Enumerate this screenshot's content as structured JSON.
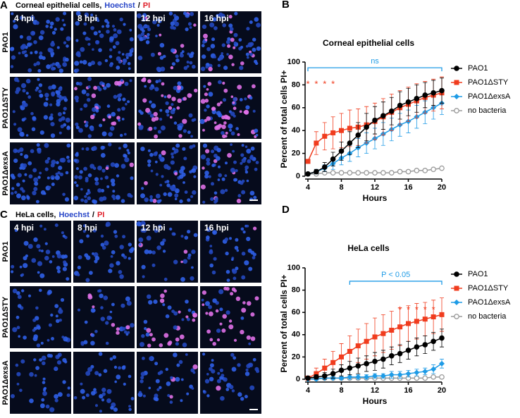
{
  "panels": [
    {
      "letter": "A",
      "header": {
        "text": "Corneal epithelial cells,",
        "stain1": "Hoechst",
        "sep": "/",
        "stain2": "PI"
      },
      "columns": [
        "4 hpi",
        "8 hpi",
        "12 hpi",
        "16 hpi"
      ],
      "rows": [
        "PAO1",
        "PAO1ΔSTY",
        "PAO1ΔexsA"
      ]
    },
    {
      "letter": "C",
      "header": {
        "text": "HeLa cells,",
        "stain1": "Hoechst",
        "sep": "/",
        "stain2": "PI"
      },
      "columns": [
        "4 hpi",
        "8 hpi",
        "12 hpi",
        "16 hpi"
      ],
      "rows": [
        "PAO1",
        "PAO1ΔSTY",
        "PAO1ΔexsA"
      ]
    }
  ],
  "chart_data": [
    {
      "type": "line",
      "letter": "B",
      "title": "Corneal epithelial cells",
      "x_label": "Hours",
      "y_label": "Percent of total cells PI+",
      "x": [
        4,
        5,
        6,
        7,
        8,
        9,
        10,
        11,
        12,
        13,
        14,
        15,
        16,
        17,
        18,
        19,
        20
      ],
      "xlim": [
        4,
        20
      ],
      "xticks": [
        4,
        8,
        12,
        16,
        20
      ],
      "ylim": [
        0,
        100
      ],
      "yticks": [
        0,
        20,
        40,
        60,
        80,
        100
      ],
      "series": [
        {
          "name": "PAO1",
          "color": "#000000",
          "marker": "circle",
          "values": [
            2,
            4,
            8,
            15,
            22,
            29,
            36,
            43,
            49,
            53,
            57,
            62,
            65,
            68,
            71,
            73,
            75
          ],
          "errors": [
            1,
            2,
            4,
            6,
            8,
            10,
            11,
            12,
            12,
            12,
            12,
            12,
            12,
            12,
            11,
            11,
            11
          ]
        },
        {
          "name": "PAO1ΔSTY",
          "color": "#f03c1e",
          "marker": "square",
          "values": [
            13,
            29,
            35,
            38,
            40,
            42,
            43,
            45,
            48,
            52,
            56,
            60,
            63,
            66,
            69,
            71,
            73
          ],
          "errors": [
            0,
            10,
            12,
            14,
            15,
            16,
            16,
            16,
            16,
            16,
            16,
            15,
            15,
            15,
            14,
            14,
            14
          ]
        },
        {
          "name": "PAO1ΔexsA",
          "color": "#1e9be6",
          "marker": "diamond",
          "values": [
            2,
            4,
            7,
            11,
            16,
            20,
            25,
            29,
            33,
            37,
            41,
            45,
            48,
            52,
            56,
            60,
            64
          ],
          "errors": [
            1,
            2,
            3,
            5,
            6,
            7,
            8,
            9,
            9,
            10,
            10,
            10,
            10,
            10,
            10,
            10,
            10
          ]
        },
        {
          "name": "no bacteria",
          "color": "#9a9a9a",
          "marker": "open-circle",
          "values": [
            2,
            2,
            3,
            3,
            3,
            3,
            3,
            3,
            3,
            3,
            3,
            4,
            4,
            5,
            5,
            6,
            7
          ]
        }
      ],
      "bracket": {
        "text": "ns",
        "x": [
          4,
          20
        ],
        "y": 95,
        "color": "#1e9be6"
      },
      "stars": {
        "text": "*",
        "x": [
          4,
          5,
          6,
          7
        ],
        "y": 82,
        "color": "#f03c1e"
      }
    },
    {
      "type": "line",
      "letter": "D",
      "title": "HeLa cells",
      "x_label": "Hours",
      "y_label": "Percent of total cells PI+",
      "x": [
        4,
        5,
        6,
        7,
        8,
        9,
        10,
        11,
        12,
        13,
        14,
        15,
        16,
        17,
        18,
        19,
        20
      ],
      "xlim": [
        4,
        20
      ],
      "xticks": [
        4,
        8,
        12,
        16,
        20
      ],
      "ylim": [
        0,
        100
      ],
      "yticks": [
        0,
        20,
        40,
        60,
        80,
        100
      ],
      "series": [
        {
          "name": "PAO1",
          "color": "#000000",
          "marker": "circle",
          "values": [
            1,
            2,
            3,
            5,
            8,
            10,
            12,
            14,
            16,
            18,
            21,
            23,
            26,
            29,
            31,
            34,
            37
          ],
          "errors": [
            0,
            2,
            3,
            4,
            5,
            6,
            7,
            7,
            8,
            8,
            8,
            8,
            8,
            8,
            8,
            8,
            8
          ]
        },
        {
          "name": "PAO1ΔSTY",
          "color": "#f03c1e",
          "marker": "square",
          "values": [
            1,
            5,
            10,
            15,
            20,
            25,
            30,
            34,
            38,
            41,
            44,
            47,
            50,
            52,
            54,
            56,
            58
          ],
          "errors": [
            0,
            5,
            8,
            10,
            12,
            14,
            15,
            16,
            17,
            17,
            17,
            17,
            16,
            16,
            15,
            15,
            15
          ]
        },
        {
          "name": "PAO1ΔexsA",
          "color": "#1e9be6",
          "marker": "diamond",
          "values": [
            0,
            0,
            1,
            1,
            1,
            2,
            2,
            2,
            3,
            3,
            4,
            4,
            5,
            6,
            7,
            9,
            14
          ],
          "errors": [
            0,
            1,
            1,
            1,
            1,
            2,
            2,
            2,
            2,
            2,
            3,
            3,
            3,
            3,
            3,
            4,
            4
          ]
        },
        {
          "name": "no bacteria",
          "color": "#9a9a9a",
          "marker": "open-circle",
          "values": [
            1,
            1,
            1,
            1,
            1,
            1,
            1,
            1,
            1,
            1,
            1,
            1,
            1,
            1,
            1,
            2,
            2
          ]
        }
      ],
      "bracket": {
        "text": "P < 0.05",
        "x": [
          9,
          20
        ],
        "y": 88,
        "color": "#1e9be6"
      },
      "stars": {
        "text": "*",
        "x": [
          15,
          16,
          17,
          18,
          19
        ],
        "y": 64,
        "color": "#f03c1e"
      }
    }
  ]
}
